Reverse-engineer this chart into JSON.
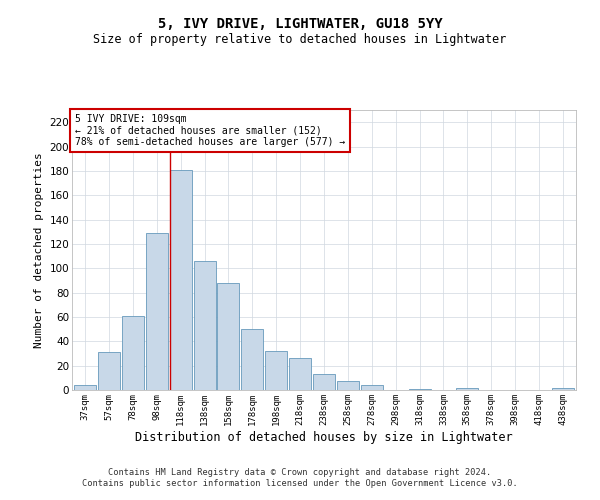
{
  "title": "5, IVY DRIVE, LIGHTWATER, GU18 5YY",
  "subtitle": "Size of property relative to detached houses in Lightwater",
  "xlabel": "Distribution of detached houses by size in Lightwater",
  "ylabel": "Number of detached properties",
  "bar_color": "#c8d8e8",
  "bar_edge_color": "#6699bb",
  "categories": [
    "37sqm",
    "57sqm",
    "78sqm",
    "98sqm",
    "118sqm",
    "138sqm",
    "158sqm",
    "178sqm",
    "198sqm",
    "218sqm",
    "238sqm",
    "258sqm",
    "278sqm",
    "298sqm",
    "318sqm",
    "338sqm",
    "358sqm",
    "378sqm",
    "398sqm",
    "418sqm",
    "438sqm"
  ],
  "values": [
    4,
    31,
    61,
    129,
    181,
    106,
    88,
    50,
    32,
    26,
    13,
    7,
    4,
    0,
    1,
    0,
    2,
    0,
    0,
    0,
    2
  ],
  "ylim": [
    0,
    230
  ],
  "yticks": [
    0,
    20,
    40,
    60,
    80,
    100,
    120,
    140,
    160,
    180,
    200,
    220
  ],
  "property_line_x": 3.55,
  "property_label": "5 IVY DRIVE: 109sqm",
  "annotation_line1": "← 21% of detached houses are smaller (152)",
  "annotation_line2": "78% of semi-detached houses are larger (577) →",
  "line_color": "#cc0000",
  "footer1": "Contains HM Land Registry data © Crown copyright and database right 2024.",
  "footer2": "Contains public sector information licensed under the Open Government Licence v3.0.",
  "bg_color": "#ffffff",
  "grid_color": "#d0d8e0"
}
